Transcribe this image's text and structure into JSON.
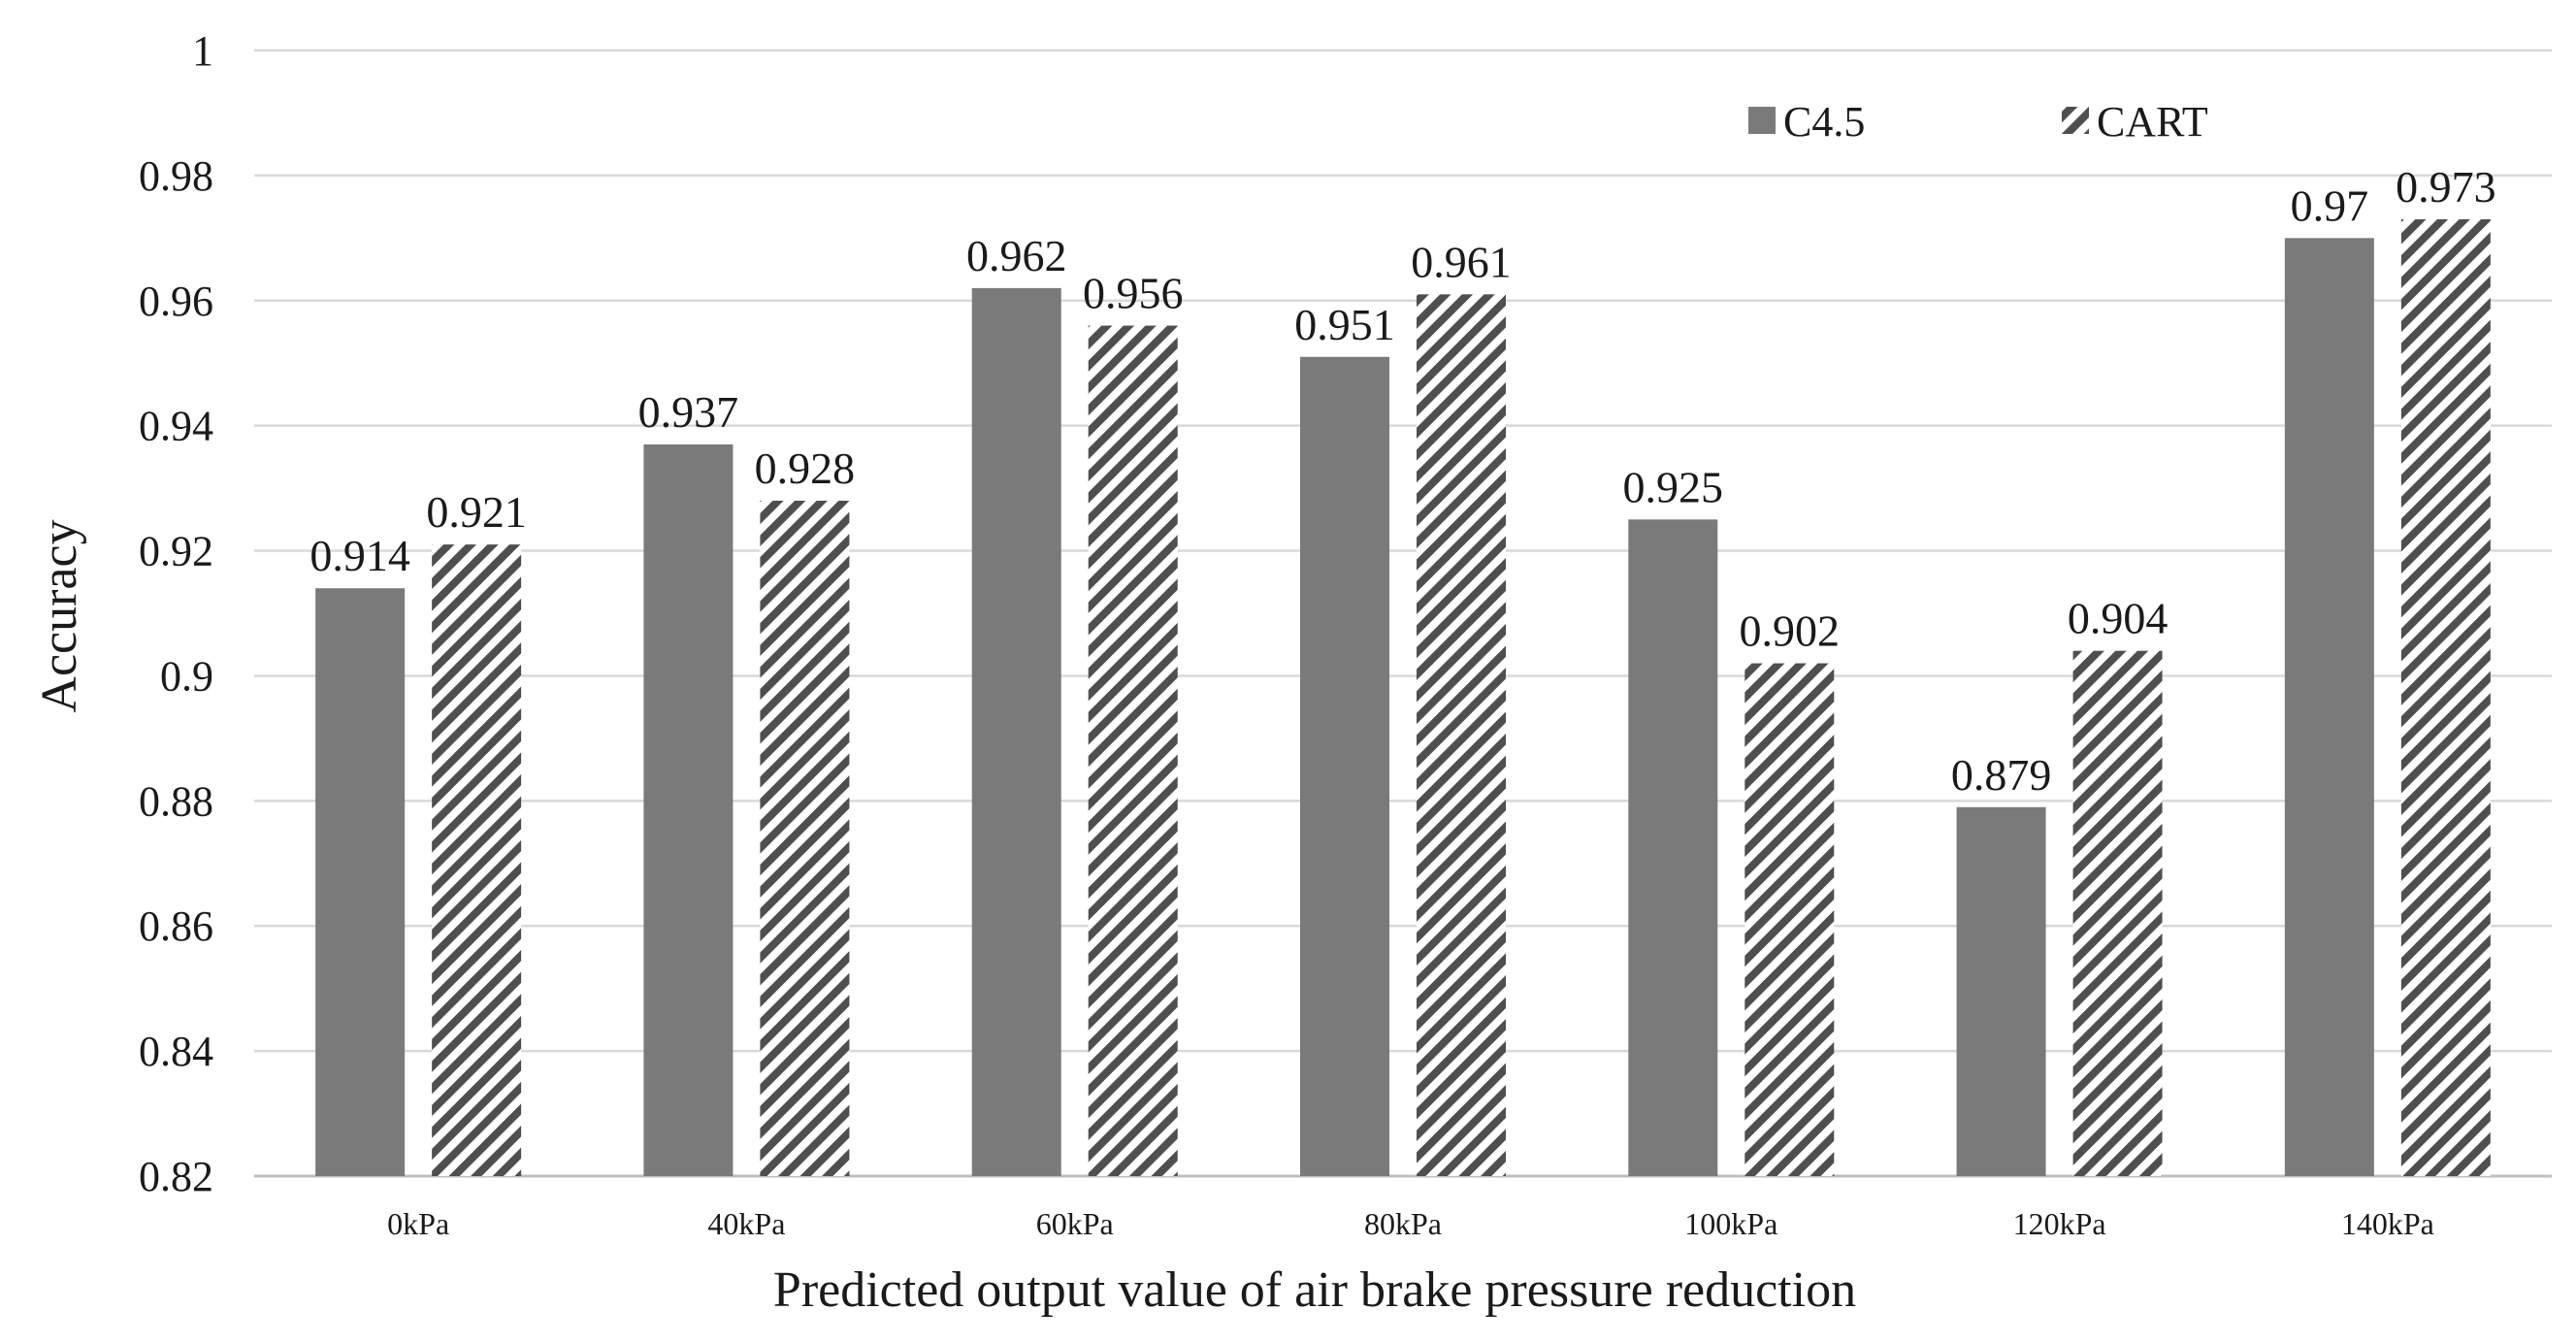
{
  "chart_data": {
    "type": "bar",
    "title": "",
    "xlabel": "Predicted output value of air brake pressure reduction",
    "ylabel": "Accuracy",
    "categories": [
      "0kPa",
      "40kPa",
      "60kPa",
      "80kPa",
      "100kPa",
      "120kPa",
      "140kPa"
    ],
    "series": [
      {
        "name": "C4.5",
        "values": [
          0.914,
          0.937,
          0.962,
          0.951,
          0.925,
          0.879,
          0.97
        ],
        "labels": [
          "0.914",
          "0.937",
          "0.962",
          "0.951",
          "0.925",
          "0.879",
          "0.97"
        ],
        "color": "#7a7a7a",
        "pattern": "solid"
      },
      {
        "name": "CART",
        "values": [
          0.921,
          0.928,
          0.956,
          0.961,
          0.902,
          0.904,
          0.973
        ],
        "labels": [
          "0.921",
          "0.928",
          "0.956",
          "0.961",
          "0.902",
          "0.904",
          "0.973"
        ],
        "color": "#5a5a5a",
        "pattern": "diagonal-hatch"
      }
    ],
    "ylim": [
      0.82,
      1
    ],
    "yticks": [
      "0.82",
      "0.84",
      "0.86",
      "0.88",
      "0.9",
      "0.92",
      "0.94",
      "0.96",
      "0.98",
      "1"
    ],
    "grid": true,
    "legend": "top-right"
  }
}
